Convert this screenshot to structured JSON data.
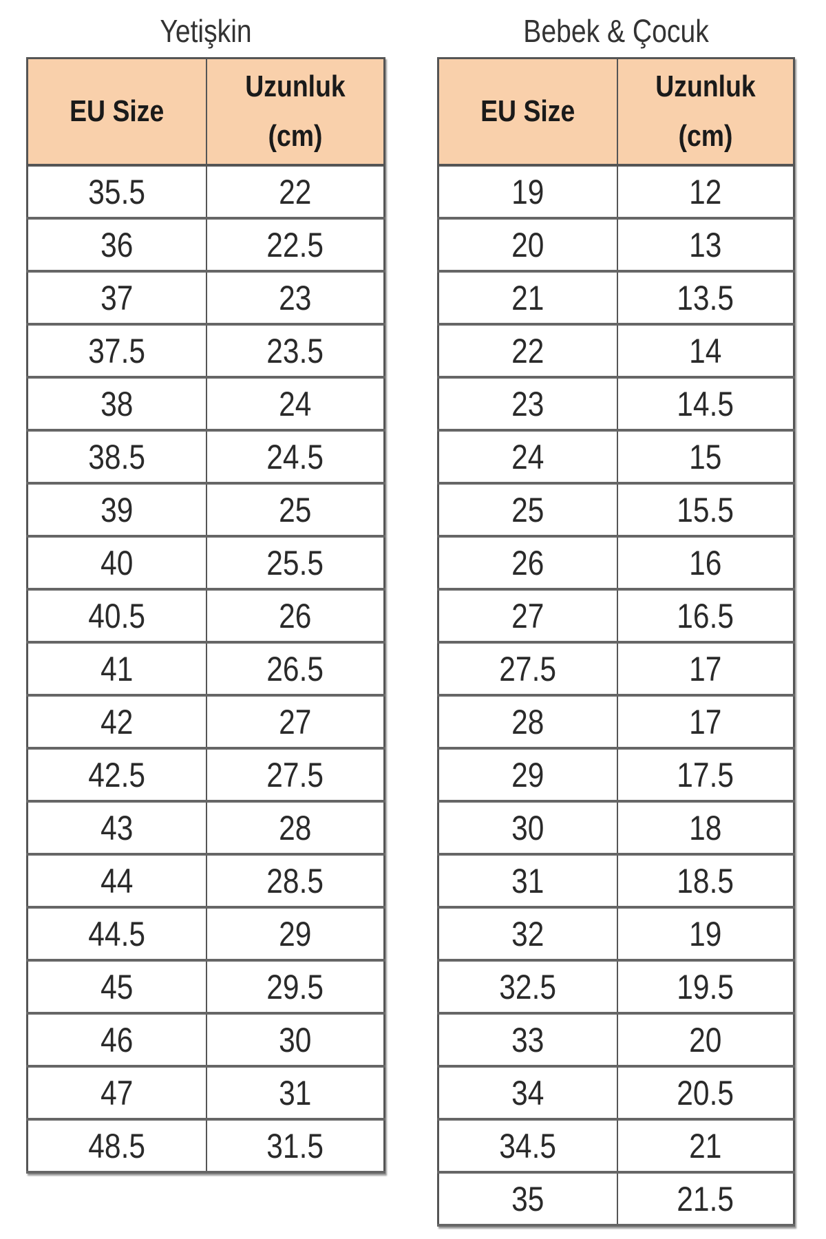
{
  "adult": {
    "title": "Yetişkin",
    "headers": [
      "EU Size",
      "Uzunluk (cm)"
    ],
    "rows": [
      [
        "35.5",
        "22"
      ],
      [
        "36",
        "22.5"
      ],
      [
        "37",
        "23"
      ],
      [
        "37.5",
        "23.5"
      ],
      [
        "38",
        "24"
      ],
      [
        "38.5",
        "24.5"
      ],
      [
        "39",
        "25"
      ],
      [
        "40",
        "25.5"
      ],
      [
        "40.5",
        "26"
      ],
      [
        "41",
        "26.5"
      ],
      [
        "42",
        "27"
      ],
      [
        "42.5",
        "27.5"
      ],
      [
        "43",
        "28"
      ],
      [
        "44",
        "28.5"
      ],
      [
        "44.5",
        "29"
      ],
      [
        "45",
        "29.5"
      ],
      [
        "46",
        "30"
      ],
      [
        "47",
        "31"
      ],
      [
        "48.5",
        "31.5"
      ]
    ]
  },
  "kids": {
    "title": "Bebek & Çocuk",
    "headers": [
      "EU Size",
      "Uzunluk (cm)"
    ],
    "rows": [
      [
        "19",
        "12"
      ],
      [
        "20",
        "13"
      ],
      [
        "21",
        "13.5"
      ],
      [
        "22",
        "14"
      ],
      [
        "23",
        "14.5"
      ],
      [
        "24",
        "15"
      ],
      [
        "25",
        "15.5"
      ],
      [
        "26",
        "16"
      ],
      [
        "27",
        "16.5"
      ],
      [
        "27.5",
        "17"
      ],
      [
        "28",
        "17"
      ],
      [
        "29",
        "17.5"
      ],
      [
        "30",
        "18"
      ],
      [
        "31",
        "18.5"
      ],
      [
        "32",
        "19"
      ],
      [
        "32.5",
        "19.5"
      ],
      [
        "33",
        "20"
      ],
      [
        "34",
        "20.5"
      ],
      [
        "34.5",
        "21"
      ],
      [
        "35",
        "21.5"
      ]
    ]
  },
  "colors": {
    "header_bg": "#f9d0ab",
    "border": "#555555"
  }
}
